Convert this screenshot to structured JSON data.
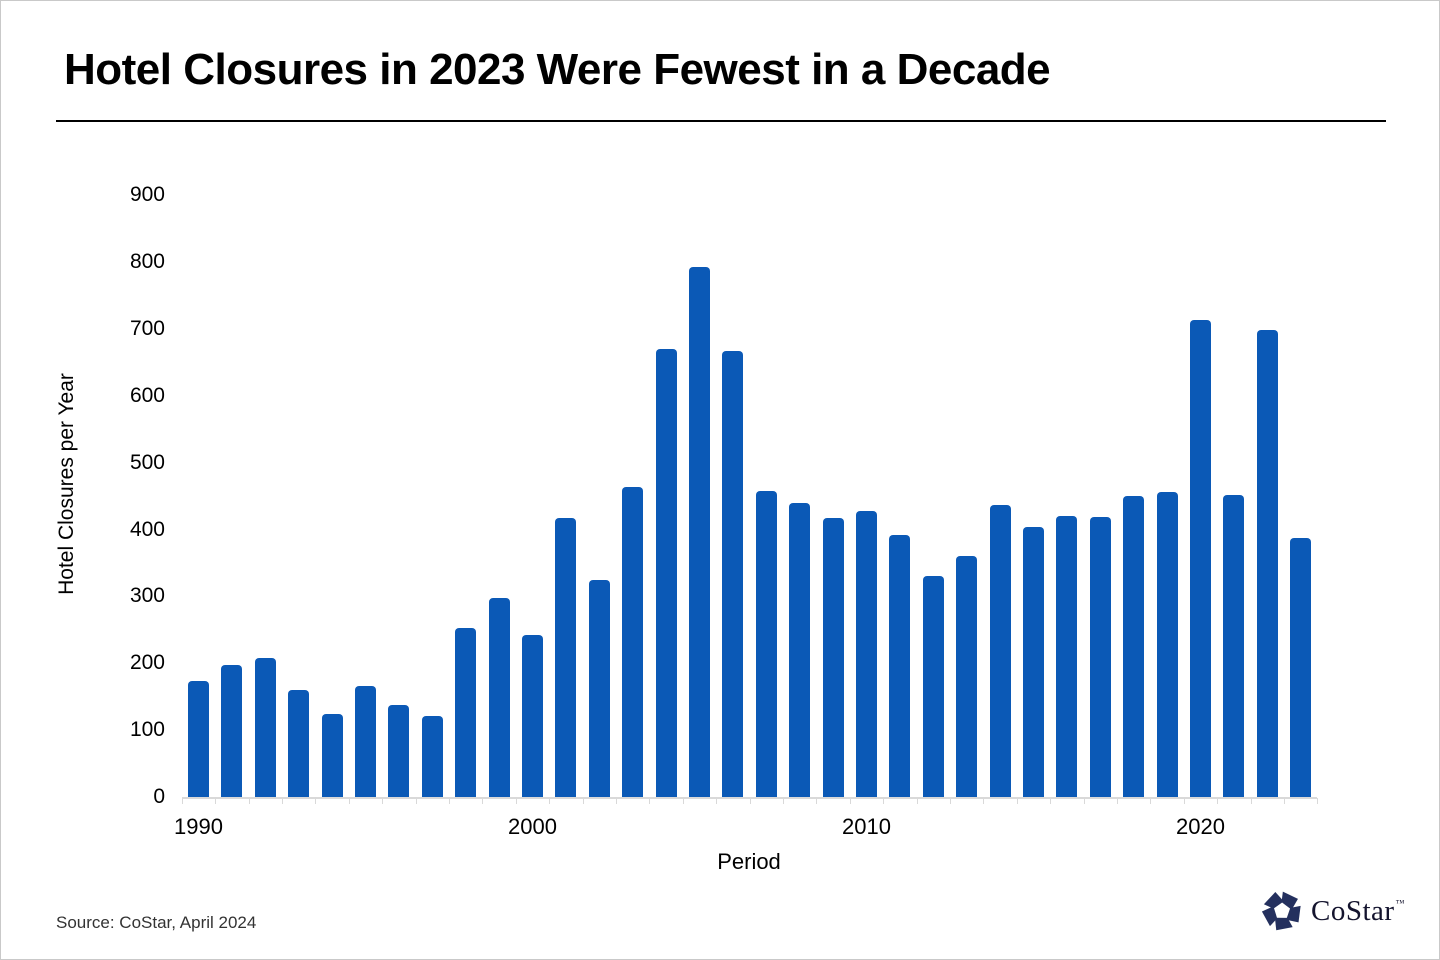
{
  "header": {
    "title": "Hotel Closures in 2023 Were Fewest in a Decade"
  },
  "footer": {
    "source": "Source: CoStar, April 2024",
    "logo_text": "CoStar",
    "logo_tm": "™"
  },
  "colors": {
    "bar": "#0b59b6",
    "axis": "#d9d9d9",
    "logo_navy": "#24305e"
  },
  "chart_data": {
    "type": "bar",
    "title": "Hotel Closures in 2023 Were Fewest in a Decade",
    "xlabel": "Period",
    "ylabel": "Hotel Closures per Year",
    "x": [
      1990,
      1991,
      1992,
      1993,
      1994,
      1995,
      1996,
      1997,
      1998,
      1999,
      2000,
      2001,
      2002,
      2003,
      2004,
      2005,
      2006,
      2007,
      2008,
      2009,
      2010,
      2011,
      2012,
      2013,
      2014,
      2015,
      2016,
      2017,
      2018,
      2019,
      2020,
      2021,
      2022,
      2023
    ],
    "values": [
      173,
      197,
      208,
      160,
      124,
      166,
      138,
      121,
      253,
      297,
      243,
      417,
      324,
      464,
      670,
      792,
      667,
      458,
      440,
      418,
      428,
      392,
      330,
      360,
      437,
      404,
      420,
      419,
      450,
      456,
      714,
      452,
      698,
      387
    ],
    "yticks": [
      0,
      100,
      200,
      300,
      400,
      500,
      600,
      700,
      800,
      900
    ],
    "xticks": [
      1990,
      2000,
      2010,
      2020
    ],
    "ylim": [
      0,
      900
    ],
    "grid": false,
    "legend": "none",
    "bar_color": "#0b59b6"
  }
}
